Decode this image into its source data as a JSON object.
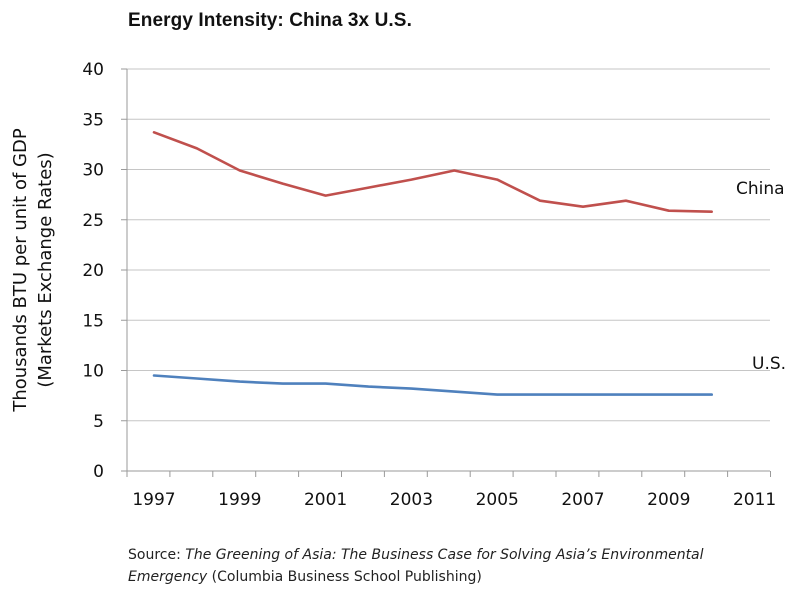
{
  "page": {
    "title": "Energy Intensity: China 3x U.S.",
    "source_prefix": "Source: ",
    "source_title": "The Greening of Asia: The Business Case for Solving Asia’s Environmental Emergency",
    "source_suffix": " (Columbia Business School Publishing)"
  },
  "chart_data": {
    "type": "line",
    "title": "Energy Intensity: China 3x U.S.",
    "xlabel": "",
    "ylabel": "Thousands BTU per unit of GDP (Markets Exchange Rates)",
    "ylabel_lines": [
      "Thousands BTU per unit of GDP",
      "(Markets Exchange Rates)"
    ],
    "x": [
      1997,
      1998,
      1999,
      2000,
      2001,
      2002,
      2003,
      2004,
      2005,
      2006,
      2007,
      2008,
      2009,
      2010,
      2011
    ],
    "x_tick_labels": [
      "1997",
      "1999",
      "2001",
      "2003",
      "2005",
      "2007",
      "2009",
      "2011"
    ],
    "y_ticks": [
      0,
      5,
      10,
      15,
      20,
      25,
      30,
      35,
      40
    ],
    "ylim": [
      0,
      40
    ],
    "grid": true,
    "series": [
      {
        "name": "China",
        "color": "#c0504d",
        "values": [
          33.7,
          32.1,
          29.9,
          28.6,
          27.4,
          28.2,
          29.0,
          29.9,
          29.0,
          26.9,
          26.3,
          26.9,
          25.9,
          25.8,
          null
        ]
      },
      {
        "name": "U.S.",
        "color": "#4f81bd",
        "values": [
          9.5,
          9.2,
          8.9,
          8.7,
          8.7,
          8.4,
          8.2,
          7.9,
          7.6,
          7.6,
          7.6,
          7.6,
          7.6,
          7.6,
          null
        ]
      }
    ]
  }
}
